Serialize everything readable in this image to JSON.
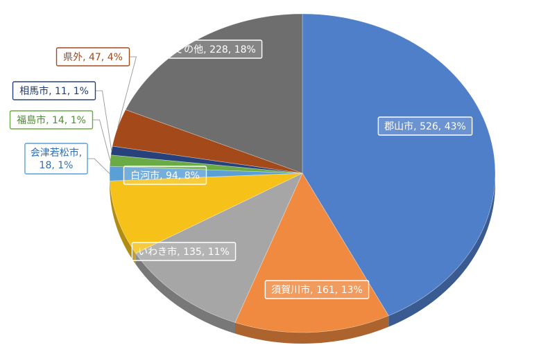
{
  "chart_data": {
    "type": "pie",
    "title": "",
    "series": [
      {
        "name": "",
        "values": [
          526,
          161,
          135,
          94,
          18,
          14,
          11,
          47,
          228
        ]
      }
    ],
    "categories": [
      "郡山市",
      "須賀川市",
      "いわき市",
      "白河市",
      "会津若松市",
      "福島市",
      "相馬市",
      "県外",
      "その他"
    ],
    "percent": [
      "43%",
      "13%",
      "11%",
      "8%",
      "1%",
      "1%",
      "1%",
      "4%",
      "18%"
    ],
    "labels": [
      "郡山市, 526, 43%",
      "須賀川市, 161, 13%",
      "いわき市, 135, 11%",
      "白河市, 94, 8%",
      "会津若松市, 18, 1%",
      "福島市, 14, 1%",
      "相馬市, 11, 1%",
      "県外, 47, 4%",
      "その他, 228, 18%"
    ],
    "colors": [
      "#4f7fc9",
      "#ef8a40",
      "#a6a6a6",
      "#f6c21a",
      "#5a9fd6",
      "#6aab45",
      "#27427a",
      "#a4491a",
      "#6e6e6e"
    ],
    "label_colors": [
      "#ffffff",
      "#ffffff",
      "#ffffff",
      "#ffffff",
      "#2f6db3",
      "#4f8b32",
      "#1f3b70",
      "#a4491a",
      "#ffffff"
    ],
    "style": "3d",
    "legend": "none"
  }
}
